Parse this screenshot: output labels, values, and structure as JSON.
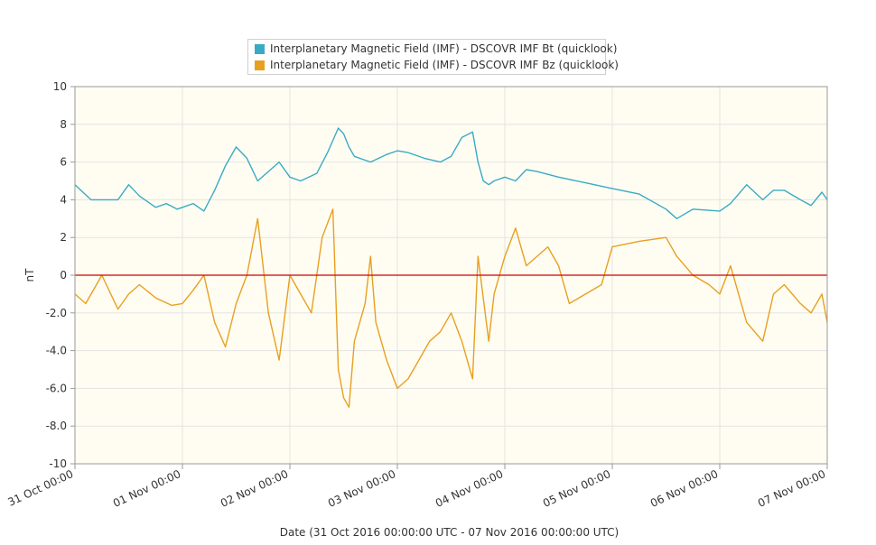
{
  "chart_data": {
    "type": "line",
    "legend": {
      "placement": "top-center",
      "entries": [
        "Interplanetary Magnetic Field (IMF) - DSCOVR IMF Bt (quicklook)",
        "Interplanetary Magnetic Field (IMF) - DSCOVR IMF Bz (quicklook)"
      ]
    },
    "xlabel": "Date (31 Oct 2016 00:00:00 UTC - 07 Nov 2016 00:00:00 UTC)",
    "ylabel": "nT",
    "x_tick_labels": [
      "31 Oct 00:00",
      "01 Nov 00:00",
      "02 Nov 00:00",
      "03 Nov 00:00",
      "04 Nov 00:00",
      "05 Nov 00:00",
      "06 Nov 00:00",
      "07 Nov 00:00"
    ],
    "y_tick_labels": [
      "10",
      "8",
      "6",
      "4",
      "2",
      "0",
      "-2.0",
      "-4.0",
      "-6.0",
      "-8.0",
      "-10"
    ],
    "xlim_days": [
      0,
      7
    ],
    "ylim": [
      -10,
      10
    ],
    "grid": true,
    "zero_line_color": "#cc0000",
    "background_color": "#fffdf2",
    "series": [
      {
        "name": "Interplanetary Magnetic Field (IMF) - DSCOVR IMF Bt (quicklook)",
        "color": "#3aaac4",
        "x": [
          0,
          0.15,
          0.25,
          0.4,
          0.5,
          0.6,
          0.75,
          0.85,
          0.95,
          1.0,
          1.1,
          1.2,
          1.3,
          1.4,
          1.5,
          1.6,
          1.7,
          1.8,
          1.9,
          2.0,
          2.1,
          2.25,
          2.35,
          2.45,
          2.5,
          2.55,
          2.6,
          2.75,
          2.9,
          3.0,
          3.1,
          3.25,
          3.4,
          3.5,
          3.6,
          3.7,
          3.75,
          3.8,
          3.85,
          3.9,
          4.0,
          4.1,
          4.2,
          4.3,
          4.5,
          4.75,
          5.0,
          5.25,
          5.5,
          5.6,
          5.75,
          6.0,
          6.1,
          6.25,
          6.4,
          6.5,
          6.6,
          6.75,
          6.85,
          6.95,
          7.0
        ],
        "y": [
          4.8,
          4.0,
          4.0,
          4.0,
          4.8,
          4.2,
          3.6,
          3.8,
          3.5,
          3.6,
          3.8,
          3.4,
          4.5,
          5.8,
          6.8,
          6.2,
          5.0,
          5.5,
          6.0,
          5.2,
          5.0,
          5.4,
          6.5,
          7.8,
          7.5,
          6.8,
          6.3,
          6.0,
          6.4,
          6.6,
          6.5,
          6.2,
          6.0,
          6.3,
          7.3,
          7.6,
          6.0,
          5.0,
          4.8,
          5.0,
          5.2,
          5.0,
          5.6,
          5.5,
          5.2,
          4.9,
          4.6,
          4.3,
          3.5,
          3.0,
          3.5,
          3.4,
          3.8,
          4.8,
          4.0,
          4.5,
          4.5,
          4.0,
          3.7,
          4.4,
          4.0
        ]
      },
      {
        "name": "Interplanetary Magnetic Field (IMF) - DSCOVR IMF Bz (quicklook)",
        "color": "#e8a020",
        "x": [
          0,
          0.1,
          0.25,
          0.4,
          0.5,
          0.6,
          0.75,
          0.9,
          1.0,
          1.1,
          1.2,
          1.3,
          1.4,
          1.5,
          1.6,
          1.7,
          1.8,
          1.9,
          2.0,
          2.1,
          2.2,
          2.3,
          2.4,
          2.45,
          2.5,
          2.55,
          2.6,
          2.7,
          2.75,
          2.8,
          2.9,
          3.0,
          3.1,
          3.2,
          3.3,
          3.4,
          3.5,
          3.6,
          3.7,
          3.75,
          3.85,
          3.9,
          4.0,
          4.1,
          4.2,
          4.3,
          4.4,
          4.5,
          4.6,
          4.75,
          4.9,
          5.0,
          5.25,
          5.5,
          5.6,
          5.75,
          5.9,
          6.0,
          6.1,
          6.25,
          6.4,
          6.5,
          6.6,
          6.75,
          6.85,
          6.95,
          7.0
        ],
        "y": [
          -1.0,
          -1.5,
          0.0,
          -1.8,
          -1.0,
          -0.5,
          -1.2,
          -1.6,
          -1.5,
          -0.8,
          0.0,
          -2.5,
          -3.8,
          -1.5,
          0.0,
          3.0,
          -2.0,
          -4.5,
          0.0,
          -1.0,
          -2.0,
          2.0,
          3.5,
          -5.0,
          -6.5,
          -7.0,
          -3.5,
          -1.5,
          1.0,
          -2.5,
          -4.5,
          -6.0,
          -5.5,
          -4.5,
          -3.5,
          -3.0,
          -2.0,
          -3.5,
          -5.5,
          1.0,
          -3.5,
          -1.0,
          1.0,
          2.5,
          0.5,
          1.0,
          1.5,
          0.5,
          -1.5,
          -1.0,
          -0.5,
          1.5,
          1.8,
          2.0,
          1.0,
          0.0,
          -0.5,
          -1.0,
          0.5,
          -2.5,
          -3.5,
          -1.0,
          -0.5,
          -1.5,
          -2.0,
          -1.0,
          -2.5
        ]
      }
    ]
  }
}
